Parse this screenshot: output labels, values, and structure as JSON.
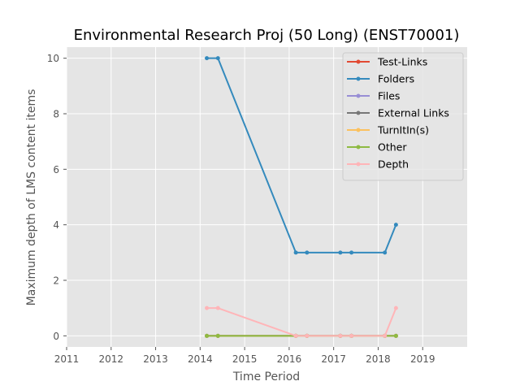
{
  "chart_data": {
    "type": "line",
    "title": "Environmental Research Proj (50 Long) (ENST70001)",
    "xlabel": "Time Period",
    "ylabel": "Maximum depth of LMS content items",
    "xlim": [
      2011,
      2020
    ],
    "ylim": [
      -0.4,
      10.4
    ],
    "x_ticks": [
      2011,
      2012,
      2013,
      2014,
      2015,
      2016,
      2017,
      2018,
      2019
    ],
    "y_ticks": [
      0,
      2,
      4,
      6,
      8,
      10
    ],
    "grid": true,
    "background": "#e5e5e5",
    "legend_position": "top-right",
    "series": [
      {
        "name": "Test-Links",
        "color": "#e24a33",
        "x": [
          2014.15,
          2014.4,
          2016.15,
          2016.4,
          2017.15,
          2017.4,
          2018.15,
          2018.4
        ],
        "y": [
          0,
          0,
          0,
          0,
          0,
          0,
          0,
          0
        ]
      },
      {
        "name": "Folders",
        "color": "#348abd",
        "x": [
          2014.15,
          2014.4,
          2016.15,
          2016.4,
          2017.15,
          2017.4,
          2018.15,
          2018.4
        ],
        "y": [
          10,
          10,
          3,
          3,
          3,
          3,
          3,
          4
        ]
      },
      {
        "name": "Files",
        "color": "#988ed5",
        "x": [
          2014.15,
          2014.4,
          2016.15,
          2016.4,
          2017.15,
          2017.4,
          2018.15,
          2018.4
        ],
        "y": [
          0,
          0,
          0,
          0,
          0,
          0,
          0,
          0
        ]
      },
      {
        "name": "External Links",
        "color": "#777777",
        "x": [
          2014.15,
          2014.4,
          2016.15,
          2016.4,
          2017.15,
          2017.4,
          2018.15,
          2018.4
        ],
        "y": [
          0,
          0,
          0,
          0,
          0,
          0,
          0,
          0
        ]
      },
      {
        "name": "TurnItIn(s)",
        "color": "#fbc15e",
        "x": [
          2014.15,
          2014.4,
          2016.15,
          2016.4,
          2017.15,
          2017.4,
          2018.15,
          2018.4
        ],
        "y": [
          0,
          0,
          0,
          0,
          0,
          0,
          0,
          0
        ]
      },
      {
        "name": "Other",
        "color": "#8eba42",
        "x": [
          2014.15,
          2014.4,
          2016.15,
          2016.4,
          2017.15,
          2017.4,
          2018.15,
          2018.4
        ],
        "y": [
          0,
          0,
          0,
          0,
          0,
          0,
          0,
          0
        ]
      },
      {
        "name": "Depth",
        "color": "#ffb5b8",
        "x": [
          2014.15,
          2014.4,
          2016.15,
          2016.4,
          2017.15,
          2017.4,
          2018.15,
          2018.4
        ],
        "y": [
          1,
          1,
          0,
          0,
          0,
          0,
          0,
          1
        ]
      }
    ]
  }
}
